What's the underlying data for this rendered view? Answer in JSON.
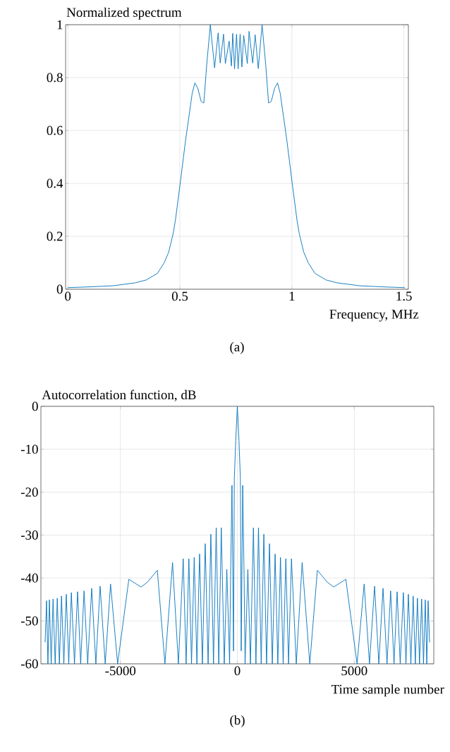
{
  "chart_data": [
    {
      "type": "line",
      "title": "Normalized spectrum",
      "xlabel": "Frequency, MHz",
      "annotations": [
        "(a)"
      ],
      "xlim": [
        -0.01,
        1.52
      ],
      "xticks": [
        0,
        0.5,
        1,
        1.5
      ],
      "ylim": [
        0,
        1
      ],
      "yticks": [
        0,
        0.2,
        0.4,
        0.6,
        0.8,
        1
      ],
      "grid": true,
      "series": [
        {
          "color": "#0072bd",
          "x": [
            0,
            0.1,
            0.2,
            0.3,
            0.35,
            0.4,
            0.43,
            0.45,
            0.47,
            0.48,
            0.5,
            0.525,
            0.545,
            0.555,
            0.567,
            0.58,
            0.595,
            0.607,
            0.62,
            0.636,
            0.655,
            0.671,
            0.68,
            0.695,
            0.703,
            0.72,
            0.73,
            0.736,
            0.744,
            0.753,
            0.76,
            0.769,
            0.777,
            0.785,
            0.801,
            0.809,
            0.825,
            0.836,
            0.85,
            0.867,
            0.883,
            0.896,
            0.908,
            0.923,
            0.936,
            0.948,
            0.958,
            0.978,
            1.003,
            1.023,
            1.033,
            1.053,
            1.073,
            1.103,
            1.153,
            1.203,
            1.303,
            1.403,
            1.503
          ],
          "values": [
            0.006,
            0.009,
            0.013,
            0.024,
            0.035,
            0.06,
            0.1,
            0.14,
            0.21,
            0.26,
            0.39,
            0.56,
            0.68,
            0.74,
            0.78,
            0.76,
            0.71,
            0.704,
            0.85,
            1.0,
            0.837,
            0.969,
            0.855,
            0.964,
            0.853,
            0.938,
            0.844,
            0.967,
            0.833,
            0.964,
            0.833,
            0.964,
            0.84,
            0.959,
            0.853,
            0.975,
            0.855,
            0.962,
            0.834,
            1.0,
            0.85,
            0.704,
            0.71,
            0.76,
            0.78,
            0.74,
            0.68,
            0.56,
            0.39,
            0.26,
            0.21,
            0.14,
            0.1,
            0.06,
            0.035,
            0.024,
            0.013,
            0.009,
            0.006
          ]
        }
      ]
    },
    {
      "type": "line",
      "title": "Autocorrelation function, dB",
      "xlabel": "Time sample number",
      "annotations": [
        "(b)"
      ],
      "xlim": [
        -8400,
        8400
      ],
      "xticks": [
        -5000,
        0,
        5000
      ],
      "ylim": [
        -60,
        0
      ],
      "yticks": [
        -60,
        -50,
        -40,
        -30,
        -20,
        -10,
        0
      ],
      "grid": true,
      "series": [
        {
          "color": "#0072bd",
          "x": [
            -8220,
            -8158,
            -8100,
            -8037,
            -7960,
            -7880,
            -7790,
            -7700,
            -7610,
            -7519,
            -7420,
            -7314,
            -7210,
            -7098,
            -6965,
            -6832,
            -6700,
            -6555,
            -6400,
            -6229,
            -6050,
            -5868,
            -5650,
            -5422,
            -5120,
            -4639,
            -4121,
            -3850,
            -3422,
            -3097,
            -2771,
            -2520,
            -2314,
            -2190,
            -2073,
            -1960,
            -1844,
            -1730,
            -1615,
            -1495,
            -1374,
            -1250,
            -1133,
            -1020,
            -904,
            -795,
            -687,
            -560,
            -450,
            -330,
            -290,
            -229,
            -165,
            -130,
            -70,
            0,
            70,
            130,
            165,
            229,
            290,
            330,
            450,
            560,
            687,
            795,
            904,
            1020,
            1133,
            1250,
            1374,
            1495,
            1615,
            1730,
            1844,
            1960,
            2073,
            2190,
            2314,
            2520,
            2771,
            3097,
            3422,
            3850,
            4121,
            4639,
            5120,
            5422,
            5650,
            5868,
            6050,
            6229,
            6400,
            6555,
            6700,
            6832,
            6965,
            7098,
            7210,
            7314,
            7420,
            7519,
            7610,
            7700,
            7790,
            7880,
            7960,
            8037,
            8100,
            8158,
            8220
          ],
          "values": [
            -55,
            -45.3,
            -60,
            -45.1,
            -60,
            -44.9,
            -60,
            -44.7,
            -60,
            -44.2,
            -60,
            -43.8,
            -60,
            -43.4,
            -60,
            -43.2,
            -60,
            -43,
            -60,
            -42.4,
            -60,
            -41.9,
            -60,
            -41.4,
            -60,
            -40.3,
            -42.1,
            -41,
            -38.2,
            -60,
            -36.4,
            -60,
            -35.5,
            -60,
            -35.5,
            -60,
            -35.2,
            -60,
            -34.4,
            -60,
            -32,
            -60,
            -29.8,
            -60,
            -28.3,
            -60,
            -28.3,
            -60,
            -38,
            -60,
            -40,
            -18.4,
            -57,
            -17,
            -8,
            0,
            -8,
            -17,
            -57,
            -18.4,
            -40,
            -60,
            -38,
            -60,
            -28.3,
            -60,
            -28.3,
            -60,
            -29.8,
            -60,
            -32,
            -60,
            -34.4,
            -60,
            -35.2,
            -60,
            -35.5,
            -60,
            -35.5,
            -60,
            -36.4,
            -60,
            -38.2,
            -41,
            -42.1,
            -40.3,
            -60,
            -41.4,
            -60,
            -41.9,
            -60,
            -42.4,
            -60,
            -43,
            -60,
            -43.2,
            -60,
            -43.4,
            -60,
            -43.8,
            -60,
            -44.2,
            -60,
            -44.7,
            -60,
            -44.9,
            -60,
            -45.1,
            -60,
            -45.3,
            -55
          ]
        }
      ]
    }
  ]
}
